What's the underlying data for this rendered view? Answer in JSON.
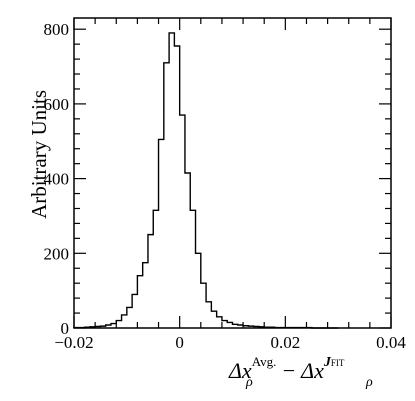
{
  "chart_data": {
    "type": "histogram",
    "title": "",
    "ylabel": "Arbitrary Units",
    "xlabel": {
      "term1": {
        "symbol": "Δx",
        "sub": "ρ",
        "sup": "Avg."
      },
      "operator": "−",
      "term2": {
        "symbol": "Δx",
        "sub": "ρ",
        "sup_main": "J",
        "sup_small": "FIT"
      }
    },
    "xlim": [
      -0.02,
      0.04
    ],
    "ylim": [
      0,
      830
    ],
    "x_ticks": [
      {
        "value": -0.02,
        "label": "−0.02"
      },
      {
        "value": 0.0,
        "label": "0"
      },
      {
        "value": 0.02,
        "label": "0.02"
      },
      {
        "value": 0.04,
        "label": "0.04"
      }
    ],
    "y_ticks": [
      {
        "value": 0,
        "label": "0"
      },
      {
        "value": 200,
        "label": "200"
      },
      {
        "value": 400,
        "label": "400"
      },
      {
        "value": 600,
        "label": "600"
      },
      {
        "value": 800,
        "label": "800"
      }
    ],
    "bin_edges": [
      -0.02,
      -0.019,
      -0.018,
      -0.017,
      -0.016,
      -0.015,
      -0.014,
      -0.013,
      -0.012,
      -0.011,
      -0.01,
      -0.009,
      -0.008,
      -0.007,
      -0.006,
      -0.005,
      -0.004,
      -0.003,
      -0.002,
      -0.001,
      0.0,
      0.001,
      0.002,
      0.003,
      0.004,
      0.005,
      0.006,
      0.007,
      0.008,
      0.009,
      0.01,
      0.011,
      0.012,
      0.013,
      0.014,
      0.015,
      0.016,
      0.017,
      0.018,
      0.019,
      0.02,
      0.021,
      0.022,
      0.023,
      0.024,
      0.025,
      0.026,
      0.027,
      0.028,
      0.029,
      0.03
    ],
    "counts": [
      1,
      1,
      2,
      3,
      4,
      5,
      8,
      12,
      20,
      35,
      55,
      90,
      140,
      175,
      250,
      315,
      505,
      710,
      790,
      755,
      570,
      415,
      315,
      200,
      120,
      70,
      45,
      30,
      20,
      15,
      10,
      8,
      6,
      5,
      4,
      3,
      2,
      2,
      1,
      1,
      1,
      1,
      1,
      1,
      1,
      0,
      0,
      0,
      0,
      0
    ],
    "grid": false,
    "legend": "none"
  }
}
